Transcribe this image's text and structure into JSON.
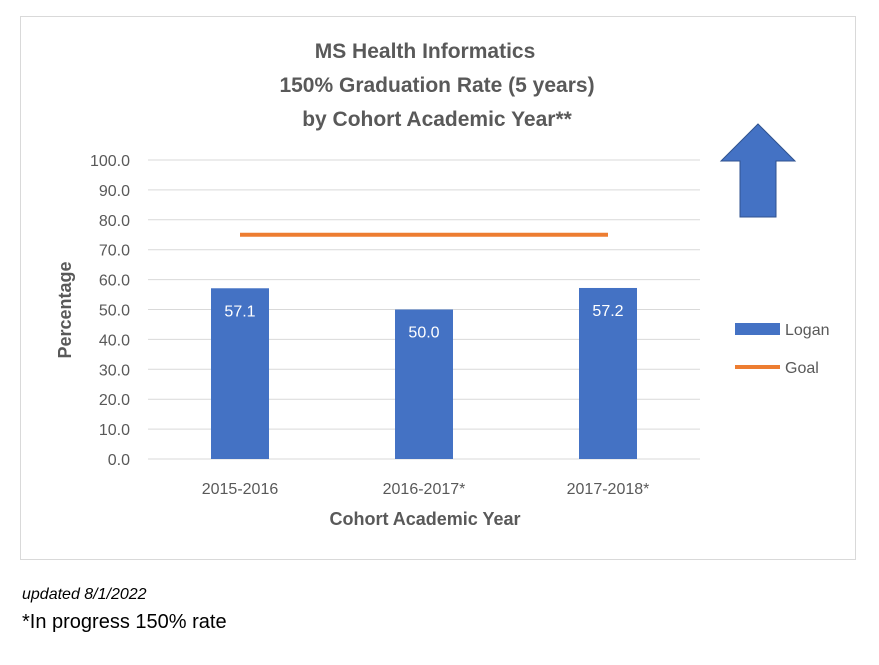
{
  "chart_data": {
    "type": "bar",
    "title": [
      "MS Health Informatics",
      "150% Graduation Rate (5 years)",
      "by Cohort Academic Year**"
    ],
    "xlabel": "Cohort Academic Year",
    "ylabel": "Percentage",
    "categories": [
      "2015-2016",
      "2016-2017*",
      "2017-2018*"
    ],
    "series": [
      {
        "name": "Logan",
        "type": "bar",
        "values": [
          57.1,
          50.0,
          57.2
        ],
        "labels": [
          "57.1",
          "50.0",
          "57.2"
        ],
        "color": "#4472c4"
      },
      {
        "name": "Goal",
        "type": "line",
        "values": [
          75.0,
          75.0,
          75.0
        ],
        "color": "#ed7d31"
      }
    ],
    "ylim": [
      0,
      100
    ],
    "yticks": [
      "0.0",
      "10.0",
      "20.0",
      "30.0",
      "40.0",
      "50.0",
      "60.0",
      "70.0",
      "80.0",
      "90.0",
      "100.0"
    ],
    "grid": true,
    "legend": "right",
    "annotation": {
      "shape": "up-arrow",
      "color": "#4472c4"
    }
  },
  "notes": {
    "updated": "updated 8/1/2022",
    "in_progress": "*In progress 150% rate"
  }
}
